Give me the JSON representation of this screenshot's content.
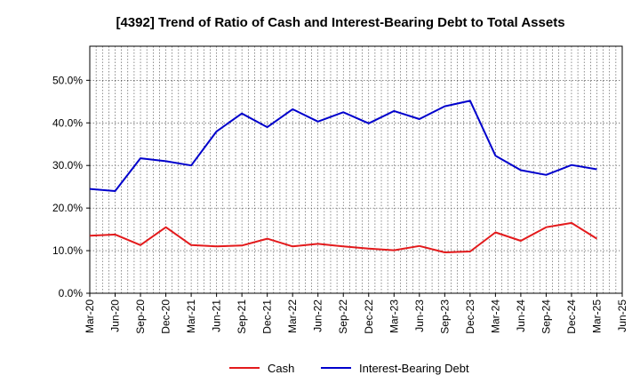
{
  "chart_data": {
    "type": "line",
    "title": "[4392]  Trend of Ratio of Cash and Interest-Bearing Debt to Total Assets",
    "xlabel": "",
    "ylabel": "",
    "categories": [
      "Mar-20",
      "Jun-20",
      "Sep-20",
      "Dec-20",
      "Mar-21",
      "Jun-21",
      "Sep-21",
      "Dec-21",
      "Mar-22",
      "Jun-22",
      "Sep-22",
      "Dec-22",
      "Mar-23",
      "Jun-23",
      "Sep-23",
      "Dec-23",
      "Mar-24",
      "Jun-24",
      "Sep-24",
      "Dec-24",
      "Mar-25",
      "Jun-25"
    ],
    "ylim": [
      0,
      58
    ],
    "yticks": [
      0,
      10,
      20,
      30,
      40,
      50
    ],
    "ytick_labels": [
      "0.0%",
      "10.0%",
      "20.0%",
      "30.0%",
      "40.0%",
      "50.0%"
    ],
    "grid": true,
    "legend_position": "bottom",
    "series": [
      {
        "name": "Cash",
        "color": "#e31a1c",
        "values": [
          13.5,
          13.8,
          11.3,
          15.5,
          11.3,
          11.0,
          11.2,
          12.8,
          11.0,
          11.6,
          11.0,
          10.5,
          10.1,
          11.1,
          9.6,
          9.8,
          14.3,
          12.3,
          15.5,
          16.5,
          12.8,
          null
        ]
      },
      {
        "name": "Interest-Bearing Debt",
        "color": "#0000cc",
        "values": [
          24.5,
          24.0,
          31.7,
          31.0,
          30.0,
          38.0,
          42.2,
          39.0,
          43.2,
          40.3,
          42.5,
          39.9,
          42.8,
          40.9,
          43.9,
          45.2,
          32.3,
          28.9,
          27.8,
          30.1,
          29.1,
          null
        ]
      }
    ]
  }
}
